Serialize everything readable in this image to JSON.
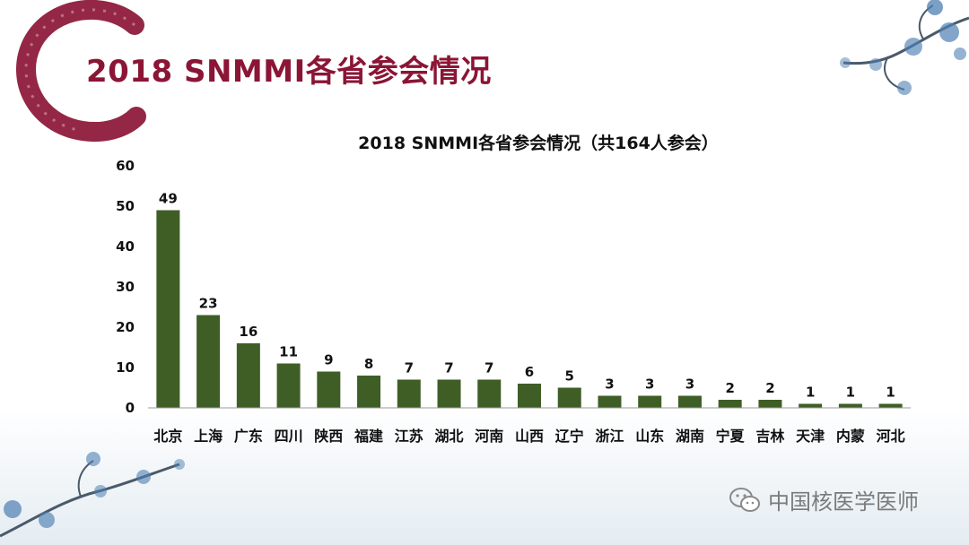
{
  "slide": {
    "title": "2018 SNMMI各省参会情况",
    "watermark": "中国核医学医师",
    "colors": {
      "title": "#8b1535",
      "ring": "#8b1535",
      "bar": "#3f5e26",
      "deco": "#4f7fb2"
    },
    "icons": [
      "wechat-icon",
      "plum-blossom-branch",
      "ink-brush-ring"
    ]
  },
  "chart_data": {
    "type": "bar",
    "title": "2018 SNMMI各省参会情况（共164人参会）",
    "xlabel": "",
    "ylabel": "",
    "categories": [
      "北京",
      "上海",
      "广东",
      "四川",
      "陕西",
      "福建",
      "江苏",
      "湖北",
      "河南",
      "山西",
      "辽宁",
      "浙江",
      "山东",
      "湖南",
      "宁夏",
      "吉林",
      "天津",
      "内蒙",
      "河北"
    ],
    "values": [
      49,
      23,
      16,
      11,
      9,
      8,
      7,
      7,
      7,
      6,
      5,
      3,
      3,
      3,
      2,
      2,
      1,
      1,
      1
    ],
    "ylim": [
      0,
      60
    ],
    "yticks": [
      0,
      10,
      20,
      30,
      40,
      50,
      60
    ],
    "data_labels": true,
    "grid": false,
    "legend": "none"
  }
}
